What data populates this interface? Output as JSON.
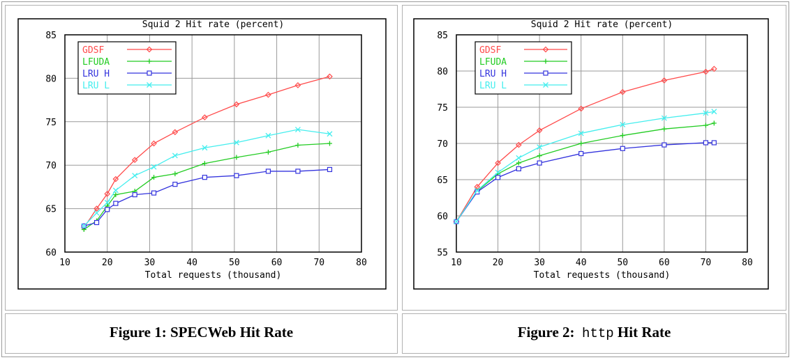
{
  "chart_data": [
    {
      "type": "line",
      "title": "Squid 2 Hit rate (percent)",
      "xlabel": "Total requests (thousand)",
      "ylabel": "",
      "xlim": [
        10,
        80
      ],
      "ylim": [
        60,
        85
      ],
      "xticks": [
        "10",
        "20",
        "30",
        "40",
        "50",
        "60",
        "70",
        "80"
      ],
      "yticks": [
        "60",
        "65",
        "70",
        "75",
        "80",
        "85"
      ],
      "grid": true,
      "legend_position": "top-left",
      "series": [
        {
          "name": "GDSF",
          "color": "#ff4a4a",
          "marker": "diamond",
          "x": [
            14.5,
            17.5,
            20,
            22,
            26.5,
            31,
            36,
            43,
            50.5,
            58,
            65,
            72.5
          ],
          "y": [
            62.8,
            65.0,
            66.7,
            68.4,
            70.6,
            72.5,
            73.8,
            75.5,
            77.0,
            78.1,
            79.2,
            80.2
          ]
        },
        {
          "name": "LFUDA",
          "color": "#22cc22",
          "marker": "plus",
          "x": [
            14.5,
            17.5,
            20,
            22,
            26.5,
            31,
            36,
            43,
            50.5,
            58,
            65,
            72.5
          ],
          "y": [
            62.6,
            63.6,
            65.3,
            66.6,
            67.0,
            68.6,
            69.0,
            70.2,
            70.9,
            71.5,
            72.3,
            72.5
          ]
        },
        {
          "name": "LRU H",
          "color": "#3333dd",
          "marker": "square",
          "x": [
            14.5,
            17.5,
            20,
            22,
            26.5,
            31,
            36,
            43,
            50.5,
            58,
            65,
            72.5
          ],
          "y": [
            63.0,
            63.4,
            64.9,
            65.6,
            66.6,
            66.8,
            67.8,
            68.6,
            68.8,
            69.3,
            69.3,
            69.5
          ]
        },
        {
          "name": "LRU L",
          "color": "#44eeee",
          "marker": "x",
          "x": [
            14.5,
            17.5,
            20,
            22,
            26.5,
            31,
            36,
            43,
            50.5,
            58,
            65,
            72.5
          ],
          "y": [
            63.0,
            64.5,
            65.7,
            67.1,
            68.8,
            69.8,
            71.1,
            72.0,
            72.6,
            73.4,
            74.1,
            73.6
          ]
        }
      ]
    },
    {
      "type": "line",
      "title": "Squid 2 Hit rate (percent)",
      "xlabel": "Total requests (thousand)",
      "ylabel": "",
      "xlim": [
        10,
        80
      ],
      "ylim": [
        55,
        85
      ],
      "xticks": [
        "10",
        "20",
        "30",
        "40",
        "50",
        "60",
        "70",
        "80"
      ],
      "yticks": [
        "55",
        "60",
        "65",
        "70",
        "75",
        "80",
        "85"
      ],
      "grid": true,
      "legend_position": "top-left",
      "series": [
        {
          "name": "GDSF",
          "color": "#ff4a4a",
          "marker": "diamond",
          "x": [
            10,
            15,
            20,
            25,
            30,
            40,
            50,
            60,
            70,
            72
          ],
          "y": [
            59.2,
            64.0,
            67.3,
            69.8,
            71.8,
            74.8,
            77.1,
            78.7,
            79.9,
            80.3
          ]
        },
        {
          "name": "LFUDA",
          "color": "#22cc22",
          "marker": "plus",
          "x": [
            10,
            15,
            20,
            25,
            30,
            40,
            50,
            60,
            70,
            72
          ],
          "y": [
            59.2,
            63.4,
            65.8,
            67.3,
            68.3,
            70.0,
            71.1,
            72.0,
            72.5,
            72.8
          ]
        },
        {
          "name": "LRU H",
          "color": "#3333dd",
          "marker": "square",
          "x": [
            10,
            15,
            20,
            25,
            30,
            40,
            50,
            60,
            70,
            72
          ],
          "y": [
            59.2,
            63.3,
            65.3,
            66.5,
            67.3,
            68.6,
            69.3,
            69.8,
            70.1,
            70.1
          ]
        },
        {
          "name": "LRU L",
          "color": "#44eeee",
          "marker": "x",
          "x": [
            10,
            15,
            20,
            25,
            30,
            40,
            50,
            60,
            70,
            72
          ],
          "y": [
            59.2,
            63.5,
            66.0,
            68.0,
            69.5,
            71.4,
            72.6,
            73.5,
            74.2,
            74.4
          ]
        }
      ]
    }
  ],
  "captions": [
    {
      "text": "Figure 1: SPECWeb Hit Rate"
    },
    {
      "prefix": "Figure 2:  ",
      "code": "http",
      "suffix": " Hit Rate"
    }
  ]
}
